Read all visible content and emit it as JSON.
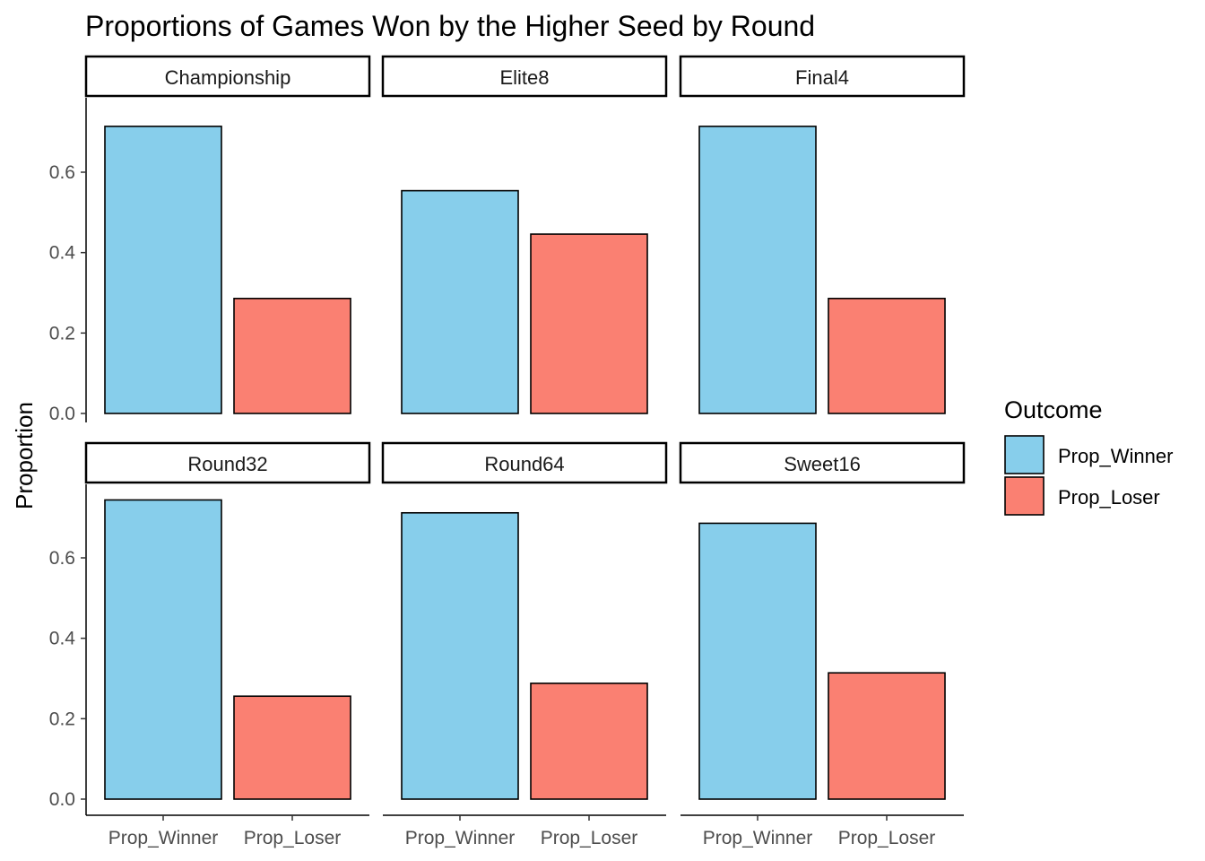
{
  "chart_data": {
    "type": "bar",
    "title": "Proportions of Games Won by the Higher Seed by Round",
    "xlabel": "",
    "ylabel": "Proportion",
    "ylim": [
      0,
      0.75
    ],
    "yticks": [
      "0.0",
      "0.2",
      "0.4",
      "0.6"
    ],
    "ytick_values": [
      0,
      0.2,
      0.4,
      0.6
    ],
    "categories": [
      "Prop_Winner",
      "Prop_Loser"
    ],
    "legend": {
      "title": "Outcome",
      "position": "right",
      "entries": [
        "Prop_Winner",
        "Prop_Loser"
      ]
    },
    "colors": {
      "Prop_Winner": "#87CEEB",
      "Prop_Loser": "#FA8072",
      "outline": "#000000"
    },
    "grid": false,
    "facets": [
      {
        "label": "Championship",
        "values": [
          0.714,
          0.286
        ]
      },
      {
        "label": "Elite8",
        "values": [
          0.554,
          0.446
        ]
      },
      {
        "label": "Final4",
        "values": [
          0.714,
          0.286
        ]
      },
      {
        "label": "Round32",
        "values": [
          0.744,
          0.256
        ]
      },
      {
        "label": "Round64",
        "values": [
          0.712,
          0.288
        ]
      },
      {
        "label": "Sweet16",
        "values": [
          0.686,
          0.314
        ]
      }
    ]
  }
}
